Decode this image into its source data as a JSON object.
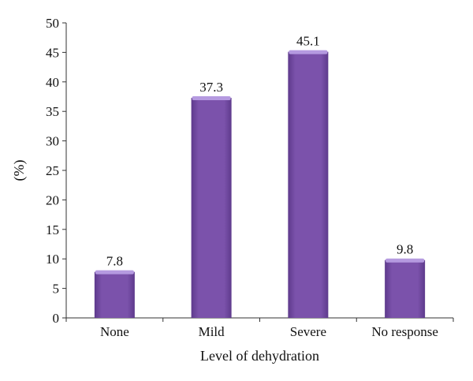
{
  "chart_data": {
    "type": "bar",
    "categories": [
      "None",
      "Mild",
      "Severe",
      "No response"
    ],
    "values": [
      7.8,
      37.3,
      45.1,
      9.8
    ],
    "data_labels": [
      "7.8",
      "37.3",
      "45.1",
      "9.8"
    ],
    "xlabel": "Level of dehydration",
    "ylabel": "(%)",
    "ylim": [
      0,
      50
    ],
    "yticks": [
      0,
      5,
      10,
      15,
      20,
      25,
      30,
      35,
      40,
      45,
      50
    ],
    "ytick_labels": [
      "0",
      "5",
      "10",
      "15",
      "20",
      "25",
      "30",
      "35",
      "40",
      "45",
      "50"
    ],
    "grid": false,
    "legend": false,
    "colors": {
      "bar": "#7b52ab",
      "bar_dark": "#5e3a8c",
      "bar_top": "#b59ae0",
      "axis": "#333333"
    }
  }
}
